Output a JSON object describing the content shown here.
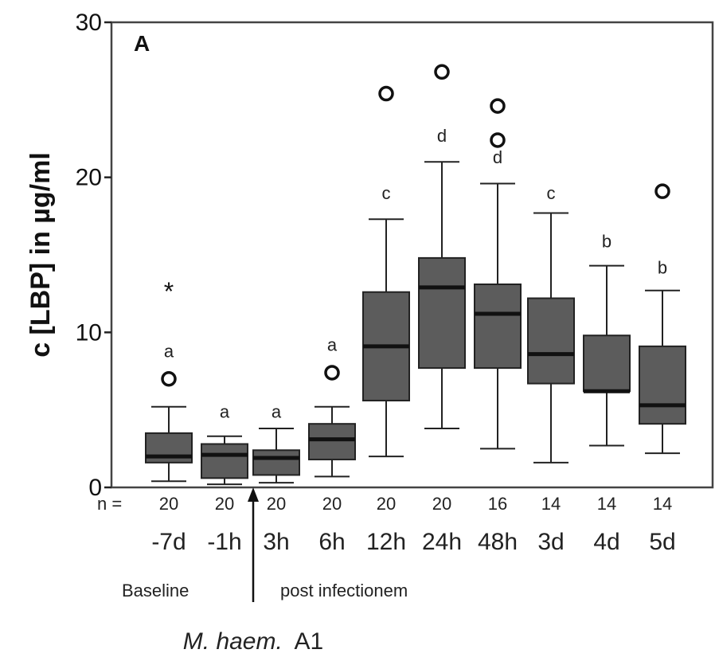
{
  "chart_data": {
    "type": "box",
    "panel_label": "A",
    "ylabel": "c [LBP] in µg/ml",
    "ylim": [
      0,
      30
    ],
    "yticks": [
      0,
      10,
      20,
      30
    ],
    "n_label": "n =",
    "categories": [
      "-7d",
      "-1h",
      "3h",
      "6h",
      "12h",
      "24h",
      "48h",
      "3d",
      "4d",
      "5d"
    ],
    "n": [
      "20",
      "20",
      "20",
      "20",
      "20",
      "20",
      "16",
      "14",
      "14",
      "14"
    ],
    "boxes": [
      {
        "whisker_low": 0.4,
        "q1": 1.6,
        "median": 2.0,
        "q3": 3.5,
        "whisker_high": 5.2
      },
      {
        "whisker_low": 0.2,
        "q1": 0.6,
        "median": 2.1,
        "q3": 2.8,
        "whisker_high": 3.3
      },
      {
        "whisker_low": 0.3,
        "q1": 0.8,
        "median": 1.9,
        "q3": 2.4,
        "whisker_high": 3.8
      },
      {
        "whisker_low": 0.7,
        "q1": 1.8,
        "median": 3.1,
        "q3": 4.1,
        "whisker_high": 5.2
      },
      {
        "whisker_low": 2.0,
        "q1": 5.6,
        "median": 9.1,
        "q3": 12.6,
        "whisker_high": 17.3
      },
      {
        "whisker_low": 3.8,
        "q1": 7.7,
        "median": 12.9,
        "q3": 14.8,
        "whisker_high": 21.0
      },
      {
        "whisker_low": 2.5,
        "q1": 7.7,
        "median": 11.2,
        "q3": 13.1,
        "whisker_high": 19.6
      },
      {
        "whisker_low": 1.6,
        "q1": 6.7,
        "median": 8.6,
        "q3": 12.2,
        "whisker_high": 17.7
      },
      {
        "whisker_low": 2.7,
        "q1": 6.2,
        "median": 6.2,
        "q3": 9.8,
        "whisker_high": 14.3
      },
      {
        "whisker_low": 2.2,
        "q1": 4.1,
        "median": 5.3,
        "q3": 9.1,
        "whisker_high": 12.7
      }
    ],
    "outliers": [
      {
        "category": "-7d",
        "value": 7.0,
        "marker": "circle"
      },
      {
        "category": "-7d",
        "value": 12.8,
        "marker": "asterisk"
      },
      {
        "category": "6h",
        "value": 7.4,
        "marker": "circle"
      },
      {
        "category": "12h",
        "value": 25.4,
        "marker": "circle"
      },
      {
        "category": "24h",
        "value": 26.8,
        "marker": "circle"
      },
      {
        "category": "48h",
        "value": 24.6,
        "marker": "circle"
      },
      {
        "category": "48h",
        "value": 22.4,
        "marker": "circle"
      },
      {
        "category": "5d",
        "value": 19.1,
        "marker": "circle"
      }
    ],
    "letters": [
      {
        "category": "-7d",
        "text": "a",
        "value": 8.4
      },
      {
        "category": "-1h",
        "text": "a",
        "value": 4.5
      },
      {
        "category": "3h",
        "text": "a",
        "value": 4.5
      },
      {
        "category": "6h",
        "text": "a",
        "value": 8.8
      },
      {
        "category": "12h",
        "text": "c",
        "value": 18.6
      },
      {
        "category": "24h",
        "text": "d",
        "value": 22.3
      },
      {
        "category": "48h",
        "text": "d",
        "value": 20.9
      },
      {
        "category": "3d",
        "text": "c",
        "value": 18.6
      },
      {
        "category": "4d",
        "text": "b",
        "value": 15.5
      },
      {
        "category": "5d",
        "text": "b",
        "value": 13.8
      }
    ],
    "phase_labels": {
      "baseline": "Baseline",
      "post": "post infectionem"
    },
    "infection_label": {
      "species": "M. haem.",
      "strain": "A1"
    },
    "colors": {
      "box_fill": "#5c5c5c",
      "median": "#111111",
      "lines": "#222222",
      "frame": "#444444"
    }
  }
}
